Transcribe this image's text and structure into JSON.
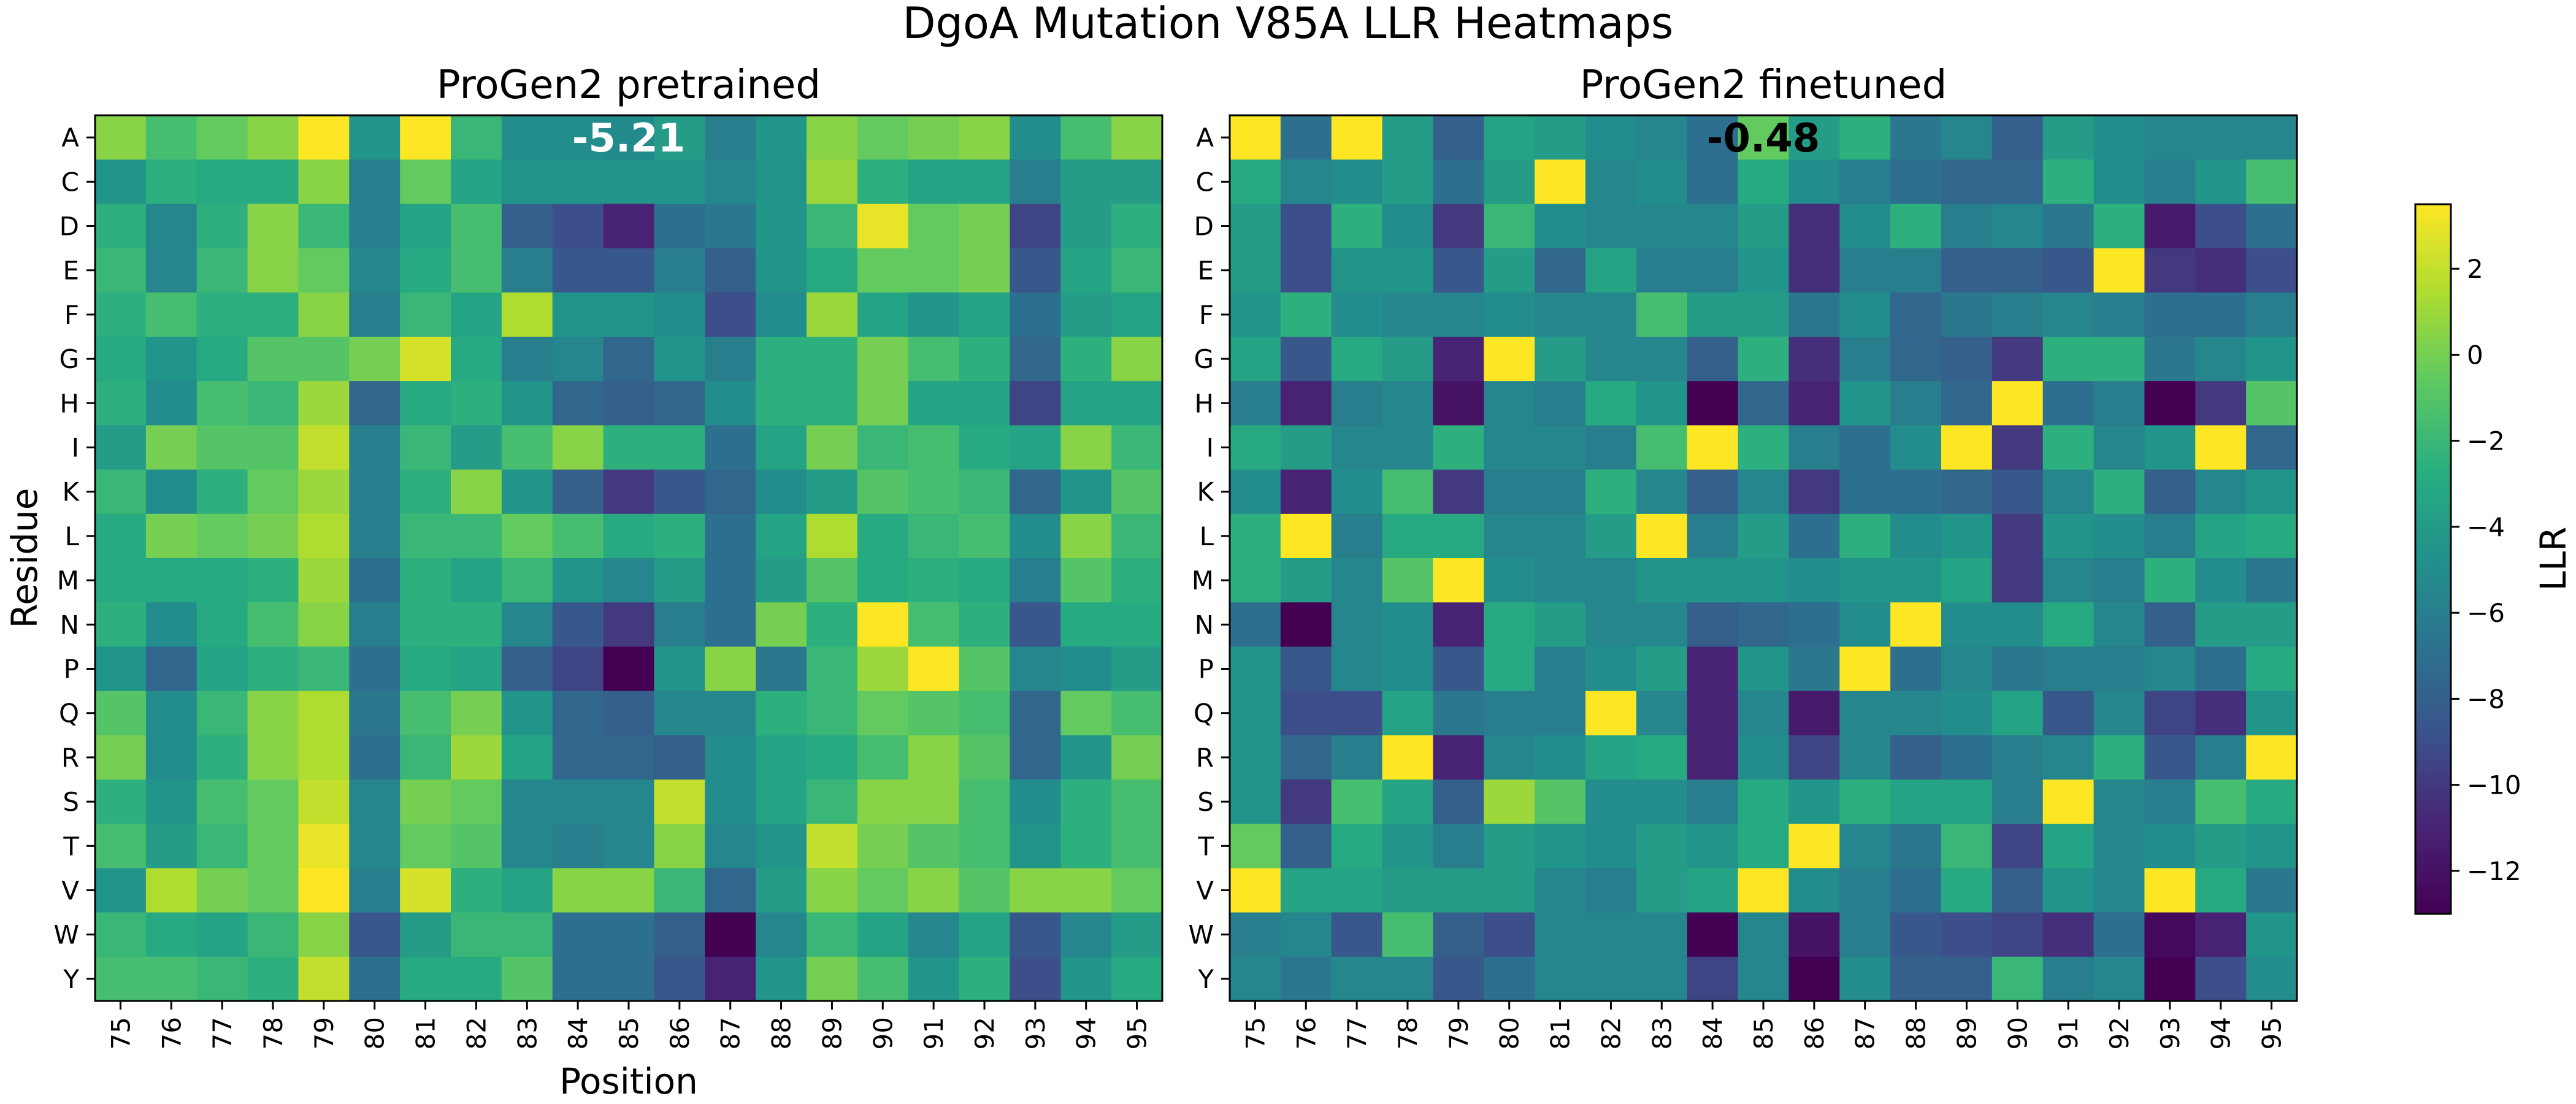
{
  "title": "DgoA Mutation V85A LLR Heatmaps",
  "colorbar": {
    "label": "LLR",
    "vmin": -13,
    "vmax": 3.5,
    "ticks": [
      2,
      0,
      -2,
      -4,
      -6,
      -8,
      -10,
      -12
    ]
  },
  "chart_data": [
    {
      "type": "heatmap",
      "title": "ProGen2 pretrained",
      "xlabel": "Position",
      "ylabel": "Residue",
      "x": [
        75,
        76,
        77,
        78,
        79,
        80,
        81,
        82,
        83,
        84,
        85,
        86,
        87,
        88,
        89,
        90,
        91,
        92,
        93,
        94,
        95
      ],
      "y": [
        "A",
        "C",
        "D",
        "E",
        "F",
        "G",
        "H",
        "I",
        "K",
        "L",
        "M",
        "N",
        "P",
        "Q",
        "R",
        "S",
        "T",
        "V",
        "W",
        "Y"
      ],
      "annotation": {
        "text": "-5.21",
        "position": 85,
        "residue": "A",
        "color": "#ffffff"
      },
      "z": [
        [
          0.5,
          -1.5,
          -0.5,
          0.5,
          3.5,
          -4.5,
          3.5,
          -2.0,
          -5.0,
          -5.0,
          -5.2,
          -4.0,
          -6.0,
          -4.5,
          0.5,
          -0.5,
          0.0,
          0.5,
          -5.0,
          -1.5,
          0.5
        ],
        [
          -4.5,
          -2.5,
          -3.0,
          -3.0,
          0.5,
          -6.0,
          -0.5,
          -3.5,
          -4.5,
          -4.5,
          -4.5,
          -4.5,
          -5.5,
          -4.5,
          1.0,
          -2.5,
          -3.5,
          -3.5,
          -6.0,
          -4.0,
          -4.0
        ],
        [
          -2.5,
          -5.5,
          -2.5,
          0.5,
          -2.0,
          -6.0,
          -3.5,
          -1.5,
          -8.0,
          -9.0,
          -11.0,
          -7.0,
          -6.5,
          -4.5,
          -2.0,
          3.0,
          -0.5,
          0.0,
          -9.5,
          -4.0,
          -2.5
        ],
        [
          -2.0,
          -5.5,
          -2.0,
          0.5,
          -0.5,
          -5.5,
          -3.0,
          -1.5,
          -6.0,
          -8.5,
          -8.5,
          -6.0,
          -8.0,
          -4.5,
          -3.0,
          -0.5,
          -0.5,
          0.0,
          -8.5,
          -3.5,
          -2.0
        ],
        [
          -2.5,
          -1.5,
          -2.5,
          -2.5,
          0.5,
          -6.0,
          -2.0,
          -3.5,
          1.5,
          -4.5,
          -4.5,
          -5.0,
          -9.0,
          -5.0,
          1.0,
          -3.5,
          -4.5,
          -3.5,
          -7.0,
          -4.0,
          -3.5
        ],
        [
          -3.0,
          -4.5,
          -3.0,
          -1.0,
          -1.0,
          0.0,
          2.5,
          -3.0,
          -6.0,
          -5.5,
          -7.5,
          -4.5,
          -6.0,
          -2.5,
          -2.5,
          0.0,
          -1.5,
          -2.5,
          -7.5,
          -2.5,
          0.5
        ],
        [
          -2.5,
          -5.0,
          -1.5,
          -2.0,
          1.0,
          -7.5,
          -3.0,
          -2.5,
          -4.5,
          -7.5,
          -8.0,
          -7.5,
          -5.0,
          -2.5,
          -2.5,
          0.0,
          -3.5,
          -3.5,
          -9.5,
          -3.5,
          -3.5
        ],
        [
          -4.0,
          0.0,
          -1.0,
          -1.0,
          2.0,
          -6.0,
          -2.0,
          -4.0,
          -1.5,
          0.5,
          -2.5,
          -2.5,
          -7.0,
          -3.5,
          0.0,
          -2.0,
          -1.5,
          -3.0,
          -3.5,
          0.5,
          -2.0
        ],
        [
          -2.0,
          -5.0,
          -2.5,
          -0.5,
          1.0,
          -6.0,
          -2.5,
          0.5,
          -4.5,
          -8.0,
          -10.0,
          -8.5,
          -7.5,
          -5.0,
          -4.0,
          -1.0,
          -1.5,
          -2.0,
          -7.5,
          -4.5,
          -1.0
        ],
        [
          -3.0,
          0.0,
          -0.5,
          0.0,
          1.5,
          -6.0,
          -2.0,
          -2.0,
          -0.5,
          -1.5,
          -3.0,
          -2.5,
          -7.0,
          -3.5,
          1.5,
          -3.0,
          -2.0,
          -1.5,
          -5.0,
          0.5,
          -2.0
        ],
        [
          -3.0,
          -3.0,
          -3.0,
          -2.5,
          1.0,
          -7.0,
          -2.5,
          -3.5,
          -2.0,
          -4.5,
          -5.5,
          -4.0,
          -7.0,
          -4.0,
          -1.0,
          -3.0,
          -2.5,
          -3.0,
          -6.0,
          -1.0,
          -2.5
        ],
        [
          -2.5,
          -5.0,
          -3.0,
          -1.5,
          0.5,
          -6.0,
          -2.5,
          -2.5,
          -5.5,
          -8.5,
          -10.0,
          -6.0,
          -7.0,
          0.0,
          -2.5,
          3.5,
          -1.5,
          -2.5,
          -8.5,
          -3.0,
          -3.0
        ],
        [
          -4.5,
          -7.5,
          -3.5,
          -2.5,
          -2.0,
          -7.0,
          -3.0,
          -3.5,
          -8.0,
          -9.5,
          -13.0,
          -4.5,
          0.5,
          -6.5,
          -2.0,
          1.0,
          3.5,
          -1.0,
          -5.5,
          -5.0,
          -4.0
        ],
        [
          -1.0,
          -5.0,
          -2.0,
          0.5,
          1.5,
          -6.5,
          -1.5,
          0.0,
          -4.5,
          -7.5,
          -8.0,
          -5.5,
          -5.5,
          -2.5,
          -2.0,
          -0.5,
          -1.0,
          -1.5,
          -7.5,
          -0.5,
          -1.5
        ],
        [
          0.0,
          -5.0,
          -2.5,
          0.5,
          1.5,
          -7.0,
          -2.0,
          1.0,
          -3.5,
          -7.5,
          -7.5,
          -8.0,
          -5.0,
          -3.5,
          -3.0,
          -1.5,
          0.5,
          -1.0,
          -7.5,
          -4.5,
          0.0
        ],
        [
          -2.5,
          -4.5,
          -1.5,
          -0.5,
          2.0,
          -5.5,
          0.0,
          -0.5,
          -5.5,
          -5.5,
          -5.5,
          2.0,
          -5.0,
          -3.5,
          -2.0,
          0.5,
          0.5,
          -1.5,
          -5.0,
          -2.5,
          -1.5
        ],
        [
          -1.5,
          -4.0,
          -2.0,
          -0.5,
          3.0,
          -5.5,
          -0.5,
          -1.0,
          -5.5,
          -6.0,
          -5.5,
          0.5,
          -5.5,
          -4.5,
          2.0,
          0.0,
          -1.0,
          -1.5,
          -4.5,
          -2.5,
          -1.5
        ],
        [
          -4.5,
          1.5,
          0.0,
          -0.5,
          3.5,
          -6.0,
          2.5,
          -2.5,
          -3.5,
          0.5,
          0.5,
          -2.0,
          -7.5,
          -4.0,
          0.5,
          -0.5,
          0.5,
          -1.0,
          0.5,
          0.5,
          -0.5
        ],
        [
          -2.0,
          -3.0,
          -3.5,
          -2.0,
          0.5,
          -8.5,
          -4.0,
          -2.0,
          -2.0,
          -7.0,
          -7.0,
          -8.0,
          -13.0,
          -5.5,
          -2.0,
          -3.5,
          -5.5,
          -3.5,
          -8.5,
          -5.5,
          -4.0
        ],
        [
          -1.5,
          -1.5,
          -2.0,
          -2.5,
          2.0,
          -7.0,
          -3.0,
          -3.0,
          -1.0,
          -7.0,
          -7.0,
          -8.5,
          -11.0,
          -4.5,
          0.0,
          -1.5,
          -4.5,
          -2.5,
          -9.0,
          -4.5,
          -3.0
        ]
      ]
    },
    {
      "type": "heatmap",
      "title": "ProGen2 finetuned",
      "xlabel": "",
      "ylabel": "",
      "x": [
        75,
        76,
        77,
        78,
        79,
        80,
        81,
        82,
        83,
        84,
        85,
        86,
        87,
        88,
        89,
        90,
        91,
        92,
        93,
        94,
        95
      ],
      "y": [
        "A",
        "C",
        "D",
        "E",
        "F",
        "G",
        "H",
        "I",
        "K",
        "L",
        "M",
        "N",
        "P",
        "Q",
        "R",
        "S",
        "T",
        "V",
        "W",
        "Y"
      ],
      "annotation": {
        "text": "-0.48",
        "position": 85,
        "residue": "A",
        "color": "#000000"
      },
      "z": [
        [
          3.5,
          -7.0,
          3.5,
          -4.0,
          -8.0,
          -3.5,
          -4.0,
          -5.0,
          -5.5,
          -7.0,
          -0.5,
          -4.0,
          -2.5,
          -6.5,
          -5.5,
          -8.0,
          -4.0,
          -5.0,
          -5.5,
          -5.5,
          -5.5
        ],
        [
          -3.0,
          -5.5,
          -5.0,
          -4.0,
          -7.0,
          -4.0,
          3.5,
          -5.5,
          -5.0,
          -7.0,
          -3.0,
          -5.0,
          -6.0,
          -7.0,
          -7.5,
          -7.5,
          -2.5,
          -5.0,
          -6.0,
          -4.5,
          -1.5
        ],
        [
          -4.0,
          -9.0,
          -2.5,
          -5.0,
          -10.0,
          -2.0,
          -5.0,
          -5.5,
          -5.5,
          -5.5,
          -4.0,
          -10.5,
          -5.0,
          -2.5,
          -6.0,
          -5.5,
          -6.5,
          -2.5,
          -11.5,
          -9.0,
          -7.0
        ],
        [
          -4.0,
          -9.0,
          -4.5,
          -4.5,
          -8.5,
          -4.0,
          -7.5,
          -3.5,
          -6.0,
          -6.0,
          -4.5,
          -10.5,
          -6.0,
          -6.0,
          -8.0,
          -8.0,
          -8.5,
          3.5,
          -10.0,
          -10.5,
          -9.0
        ],
        [
          -4.5,
          -2.5,
          -5.0,
          -5.5,
          -5.5,
          -5.0,
          -5.5,
          -5.5,
          -1.5,
          -4.0,
          -4.0,
          -6.5,
          -5.0,
          -7.5,
          -6.5,
          -6.0,
          -5.5,
          -6.0,
          -7.0,
          -7.0,
          -6.0
        ],
        [
          -3.5,
          -8.5,
          -3.0,
          -4.0,
          -11.0,
          3.5,
          -4.0,
          -5.5,
          -5.5,
          -8.0,
          -2.5,
          -10.5,
          -6.0,
          -7.5,
          -8.0,
          -10.0,
          -2.5,
          -2.5,
          -6.5,
          -5.5,
          -4.5
        ],
        [
          -6.0,
          -11.0,
          -6.0,
          -5.5,
          -12.0,
          -5.5,
          -6.0,
          -3.0,
          -4.5,
          -13.0,
          -7.5,
          -11.0,
          -4.5,
          -6.0,
          -7.5,
          3.5,
          -7.0,
          -6.0,
          -13.0,
          -10.0,
          -1.0
        ],
        [
          -3.0,
          -4.0,
          -5.5,
          -5.5,
          -2.5,
          -5.5,
          -5.5,
          -6.0,
          -1.5,
          3.5,
          -2.5,
          -6.0,
          -7.0,
          -5.0,
          3.5,
          -10.0,
          -2.5,
          -5.5,
          -4.5,
          3.5,
          -7.5
        ],
        [
          -5.0,
          -11.0,
          -5.0,
          -1.5,
          -10.0,
          -6.0,
          -6.0,
          -2.5,
          -5.5,
          -8.0,
          -5.5,
          -10.0,
          -7.0,
          -7.0,
          -7.5,
          -8.5,
          -5.5,
          -2.5,
          -8.0,
          -5.5,
          -4.5
        ],
        [
          -2.5,
          3.5,
          -6.0,
          -3.0,
          -3.0,
          -5.5,
          -5.5,
          -4.0,
          3.5,
          -6.0,
          -4.0,
          -7.0,
          -2.5,
          -5.0,
          -4.5,
          -10.0,
          -4.5,
          -5.0,
          -6.0,
          -3.5,
          -3.0
        ],
        [
          -2.5,
          -4.0,
          -5.5,
          -1.0,
          3.5,
          -5.0,
          -5.5,
          -5.5,
          -4.5,
          -4.5,
          -4.5,
          -5.0,
          -4.5,
          -4.5,
          -3.5,
          -10.0,
          -5.5,
          -6.0,
          -2.5,
          -5.0,
          -6.5
        ],
        [
          -7.0,
          -13.0,
          -5.5,
          -5.0,
          -11.0,
          -3.0,
          -4.0,
          -5.5,
          -5.5,
          -8.0,
          -7.5,
          -7.0,
          -5.0,
          3.5,
          -5.0,
          -5.0,
          -3.0,
          -5.5,
          -8.0,
          -4.0,
          -4.0
        ],
        [
          -4.5,
          -8.5,
          -5.5,
          -5.0,
          -8.5,
          -3.0,
          -6.0,
          -5.0,
          -4.0,
          -11.0,
          -4.5,
          -6.5,
          3.5,
          -7.0,
          -5.5,
          -6.5,
          -6.0,
          -6.0,
          -5.5,
          -7.0,
          -3.0
        ],
        [
          -4.5,
          -9.0,
          -9.0,
          -3.5,
          -6.5,
          -6.0,
          -6.0,
          3.5,
          -5.5,
          -11.0,
          -5.5,
          -11.5,
          -5.5,
          -5.5,
          -5.0,
          -3.5,
          -8.5,
          -5.5,
          -9.5,
          -10.5,
          -4.5
        ],
        [
          -4.5,
          -7.5,
          -6.0,
          3.5,
          -11.0,
          -5.5,
          -5.0,
          -3.5,
          -3.0,
          -11.0,
          -5.0,
          -9.5,
          -5.5,
          -8.0,
          -7.0,
          -6.0,
          -5.5,
          -2.5,
          -8.5,
          -6.0,
          3.5
        ],
        [
          -4.5,
          -10.0,
          -1.5,
          -3.5,
          -8.0,
          1.0,
          -1.0,
          -5.0,
          -5.0,
          -6.0,
          -3.0,
          -4.5,
          -2.5,
          -3.5,
          -3.5,
          -6.0,
          3.5,
          -5.5,
          -6.0,
          -1.5,
          -3.0
        ],
        [
          -0.5,
          -8.0,
          -3.0,
          -4.5,
          -6.0,
          -4.0,
          -4.5,
          -5.0,
          -4.0,
          -4.5,
          -3.0,
          3.5,
          -5.5,
          -6.5,
          -2.0,
          -9.5,
          -3.5,
          -5.5,
          -5.0,
          -4.0,
          -4.5
        ],
        [
          3.5,
          -3.5,
          -3.5,
          -4.0,
          -4.0,
          -4.0,
          -5.5,
          -6.0,
          -4.0,
          -3.5,
          3.5,
          -5.0,
          -6.0,
          -7.0,
          -3.0,
          -8.0,
          -4.5,
          -5.5,
          3.5,
          -3.0,
          -6.5
        ],
        [
          -6.0,
          -5.5,
          -8.5,
          -1.5,
          -8.0,
          -9.0,
          -5.5,
          -5.5,
          -5.5,
          -13.0,
          -5.5,
          -12.0,
          -6.0,
          -8.5,
          -9.0,
          -9.5,
          -10.5,
          -7.0,
          -12.5,
          -11.0,
          -4.5
        ],
        [
          -5.5,
          -6.5,
          -5.5,
          -5.5,
          -8.5,
          -7.0,
          -5.5,
          -5.5,
          -5.5,
          -9.5,
          -5.5,
          -13.0,
          -5.0,
          -8.0,
          -8.0,
          -2.0,
          -6.0,
          -5.5,
          -13.0,
          -9.0,
          -5.0
        ]
      ]
    }
  ]
}
